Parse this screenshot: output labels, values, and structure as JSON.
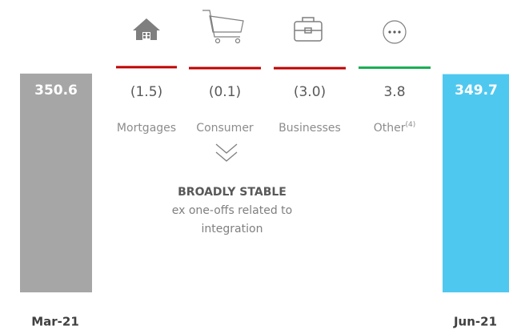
{
  "chart_data": {
    "type": "waterfall",
    "categories": [
      "Mar-21",
      "Mortgages",
      "Consumer",
      "Businesses",
      "Other",
      "Jun-21"
    ],
    "category_footnotes": {
      "4": "(4)"
    },
    "values": [
      350.6,
      -1.5,
      -0.1,
      -3.0,
      3.8,
      349.7
    ],
    "value_labels": [
      "350.6",
      "(1.5)",
      "(0.1)",
      "(3.0)",
      "3.8",
      "349.7"
    ],
    "totals": [
      true,
      false,
      false,
      false,
      false,
      true
    ],
    "colors": [
      "#a6a6a6",
      "#c00000",
      "#c00000",
      "#c00000",
      "#1aaf54",
      "#4fc8f0"
    ],
    "ylim": [
      0,
      430
    ],
    "annotation": {
      "title": "BROADLY STABLE",
      "lines": [
        "ex one-offs related to",
        "integration"
      ]
    }
  }
}
